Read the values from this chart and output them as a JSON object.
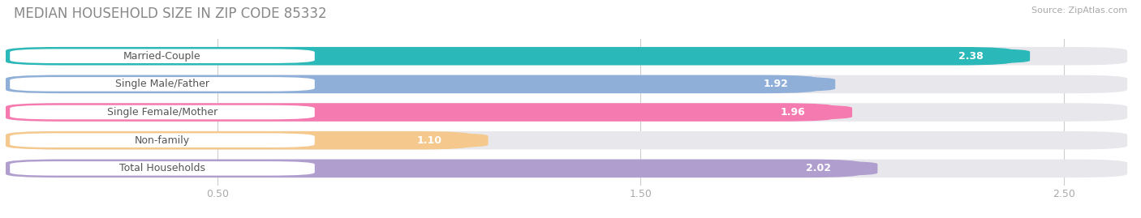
{
  "title": "MEDIAN HOUSEHOLD SIZE IN ZIP CODE 85332",
  "source": "Source: ZipAtlas.com",
  "categories": [
    "Married-Couple",
    "Single Male/Father",
    "Single Female/Mother",
    "Non-family",
    "Total Households"
  ],
  "values": [
    2.38,
    1.92,
    1.96,
    1.1,
    2.02
  ],
  "bar_colors": [
    "#2ab8b8",
    "#8fafd8",
    "#f47aaf",
    "#f5c98e",
    "#b09ecf"
  ],
  "bar_bg_color": "#e8e8ec",
  "xlim_max": 2.65,
  "xticks": [
    0.5,
    1.5,
    2.5
  ],
  "bg_color": "#ffffff",
  "title_color": "#888888",
  "source_color": "#aaaaaa",
  "label_text_color": "#555555",
  "value_text_color": "#ffffff",
  "title_fontsize": 12,
  "value_fontsize": 9,
  "label_fontsize": 9,
  "bar_height": 0.65,
  "bar_gap": 0.12
}
